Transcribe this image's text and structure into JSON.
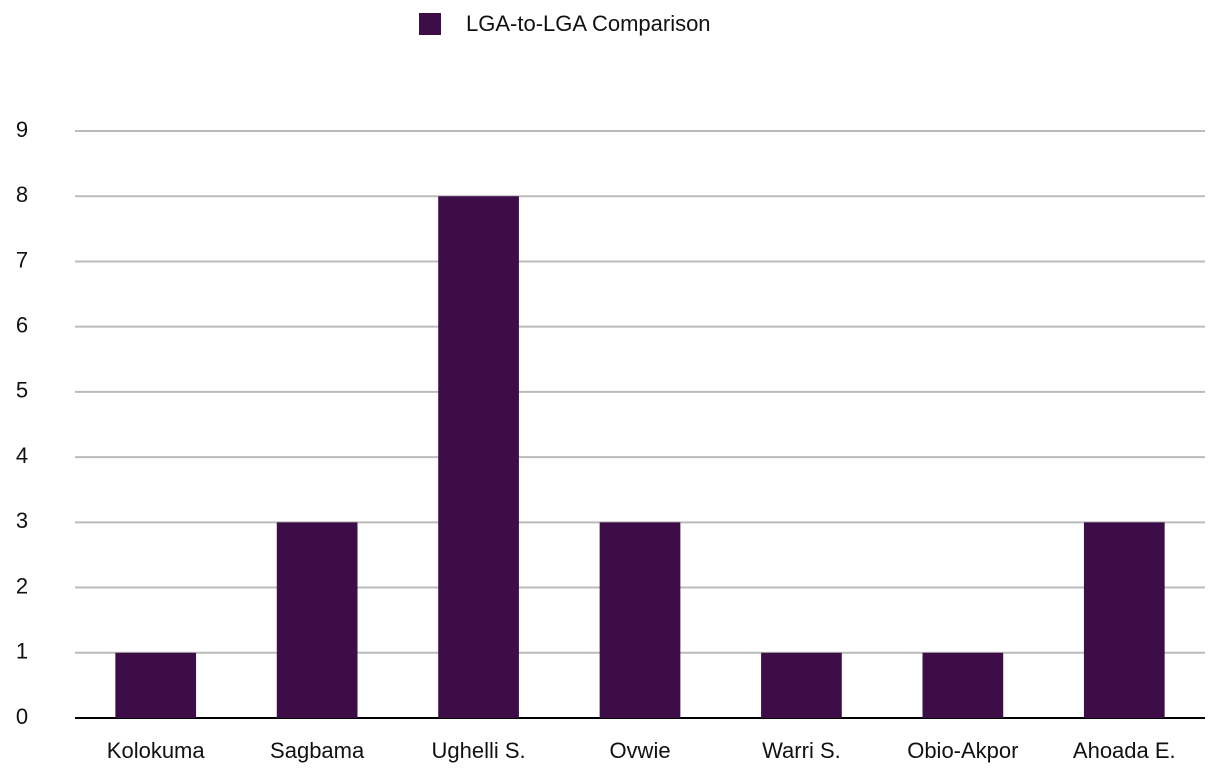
{
  "chart_data": {
    "type": "bar",
    "categories": [
      "Kolokuma",
      "Sagbama",
      "Ughelli S.",
      "Ovwie",
      "Warri S.",
      "Obio-Akpor",
      "Ahoada E."
    ],
    "series": [
      {
        "name": "LGA-to-LGA Comparison",
        "color": "#3d0d47",
        "values": [
          1,
          3,
          8,
          3,
          1,
          1,
          3
        ]
      }
    ],
    "ylim": [
      0,
      9
    ],
    "yticks": [
      0,
      1,
      2,
      3,
      4,
      5,
      6,
      7,
      8,
      9
    ],
    "grid": true,
    "legend": "top"
  }
}
